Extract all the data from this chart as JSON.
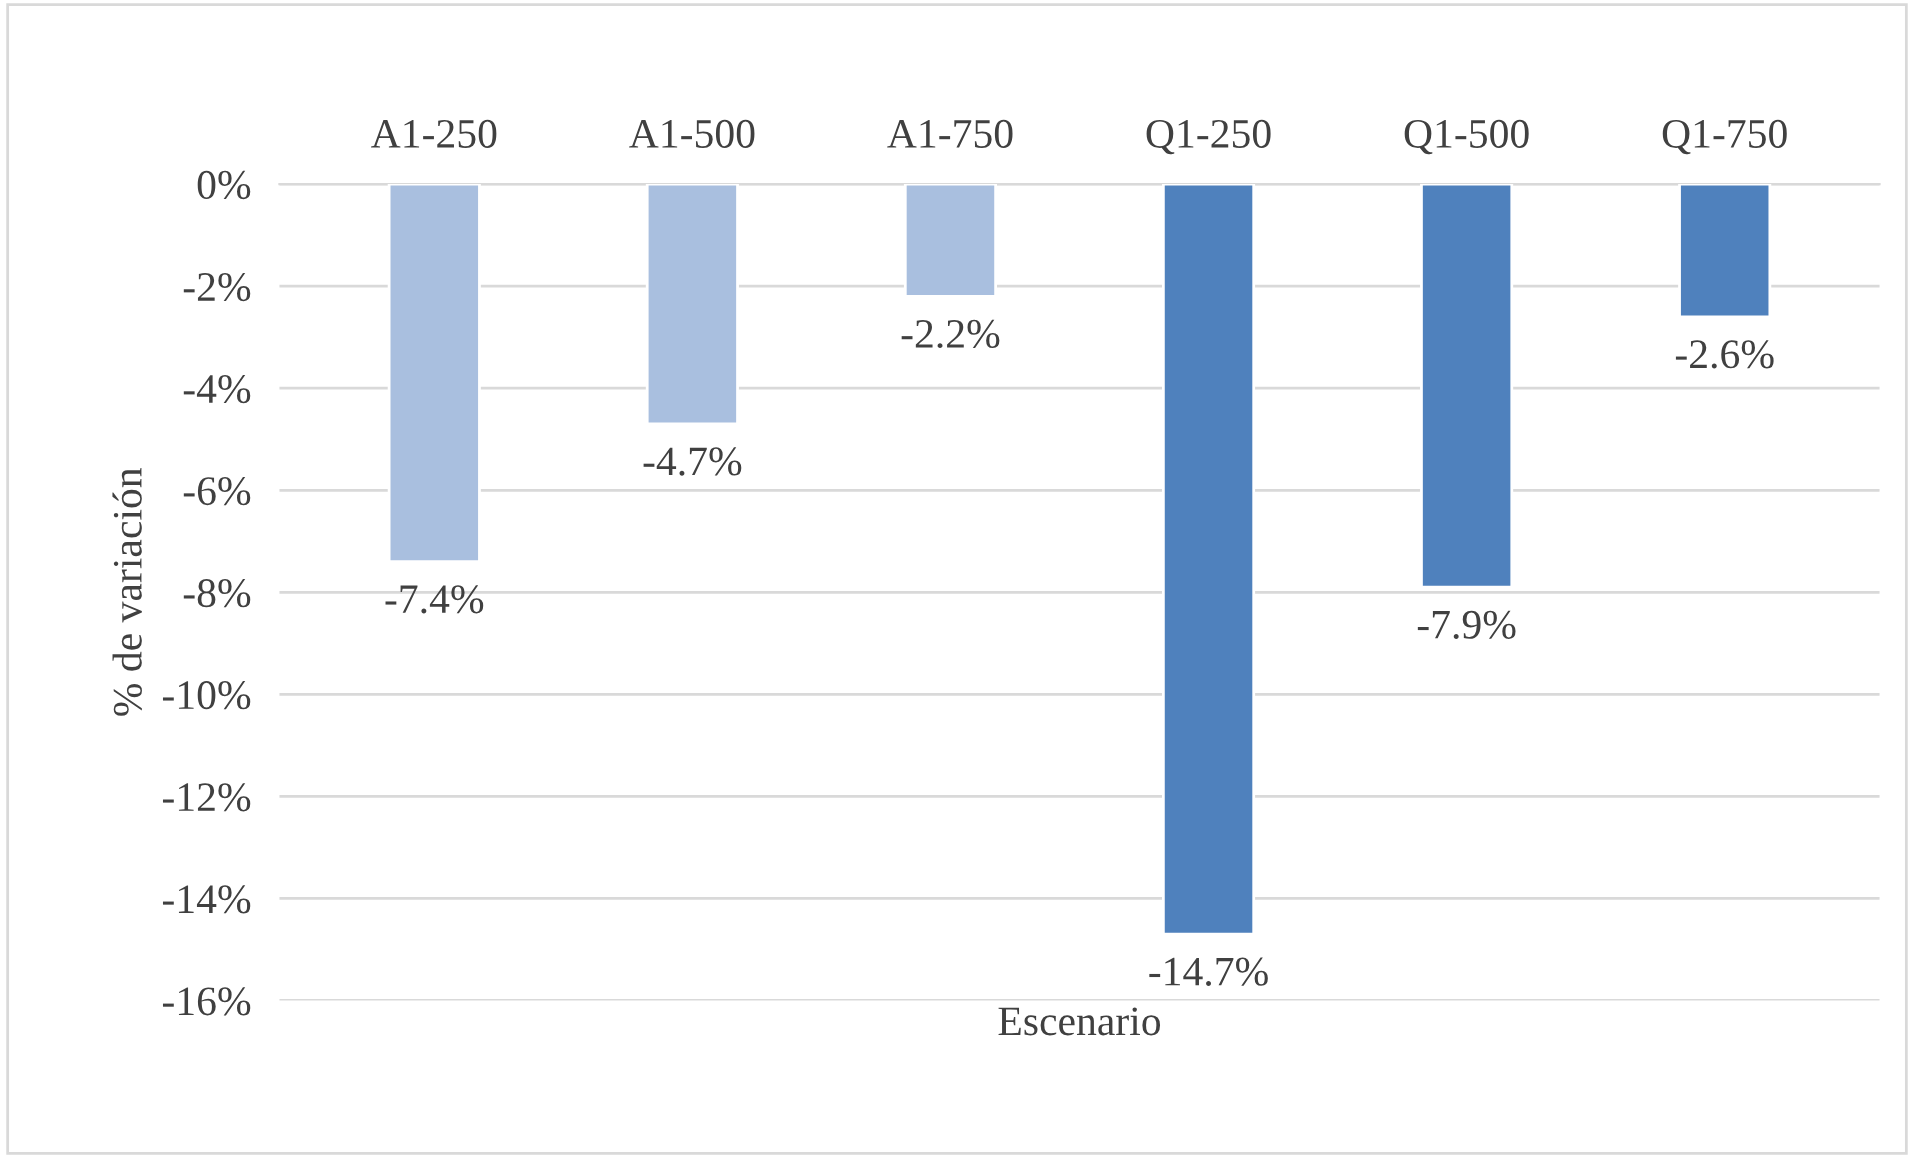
{
  "chart_data": {
    "type": "bar",
    "categories": [
      "A1-250",
      "A1-500",
      "A1-750",
      "Q1-250",
      "Q1-500",
      "Q1-750"
    ],
    "values": [
      -7.4,
      -4.7,
      -2.2,
      -14.7,
      -7.9,
      -2.6
    ],
    "colors": [
      "#a9bfdf",
      "#a9bfdf",
      "#a9bfdf",
      "#4f81bd",
      "#4f81bd",
      "#4f81bd"
    ],
    "value_labels": [
      "-7.4%",
      "-4.7%",
      "-2.2%",
      "-14.7%",
      "-7.9%",
      "-2.6%"
    ],
    "xlabel": "Escenario",
    "ylabel": "% de variación",
    "ylim": [
      -16,
      0
    ],
    "yticks": [
      {
        "value": 0,
        "label": "0%"
      },
      {
        "value": -2,
        "label": "-2%"
      },
      {
        "value": -4,
        "label": "-4%"
      },
      {
        "value": -6,
        "label": "-6%"
      },
      {
        "value": -8,
        "label": "-8%"
      },
      {
        "value": -10,
        "label": "-10%"
      },
      {
        "value": -12,
        "label": "-12%"
      },
      {
        "value": -14,
        "label": "-14%"
      },
      {
        "value": -16,
        "label": "-16%"
      }
    ],
    "grid": "y"
  }
}
